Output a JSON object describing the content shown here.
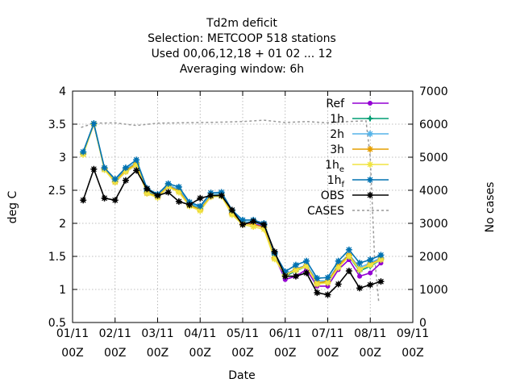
{
  "chart_data": {
    "type": "line",
    "title_lines": [
      "Td2m deficit",
      "Selection: METCOOP    518 stations",
      "Used  00,06,12,18 + 01 02 ... 12",
      "Averaging window:  6h"
    ],
    "xlabel": "Date",
    "ylabel": "deg C",
    "y2label": "No cases",
    "xlim": [
      0,
      8
    ],
    "ylim": [
      0.5,
      4
    ],
    "y2lim": [
      0,
      7000
    ],
    "grid": true,
    "legend_position": "top-right",
    "x_ticks": [
      {
        "x": 0,
        "line1": "01/11",
        "line2": "00Z"
      },
      {
        "x": 1,
        "line1": "02/11",
        "line2": "00Z"
      },
      {
        "x": 2,
        "line1": "03/11",
        "line2": "00Z"
      },
      {
        "x": 3,
        "line1": "04/11",
        "line2": "00Z"
      },
      {
        "x": 4,
        "line1": "05/11",
        "line2": "00Z"
      },
      {
        "x": 5,
        "line1": "06/11",
        "line2": "00Z"
      },
      {
        "x": 6,
        "line1": "07/11",
        "line2": "00Z"
      },
      {
        "x": 7,
        "line1": "08/11",
        "line2": "00Z"
      },
      {
        "x": 8,
        "line1": "09/11",
        "line2": "00Z"
      }
    ],
    "y_ticks": [
      {
        "v": 0.5,
        "label": "0.5"
      },
      {
        "v": 1,
        "label": "1"
      },
      {
        "v": 1.5,
        "label": "1.5"
      },
      {
        "v": 2,
        "label": "2"
      },
      {
        "v": 2.5,
        "label": "2.5"
      },
      {
        "v": 3,
        "label": "3"
      },
      {
        "v": 3.5,
        "label": "3.5"
      },
      {
        "v": 4,
        "label": "4"
      }
    ],
    "y2_ticks": [
      {
        "v": 0,
        "label": "0"
      },
      {
        "v": 1000,
        "label": "1000"
      },
      {
        "v": 2000,
        "label": "2000"
      },
      {
        "v": 3000,
        "label": "3000"
      },
      {
        "v": 4000,
        "label": "4000"
      },
      {
        "v": 5000,
        "label": "5000"
      },
      {
        "v": 6000,
        "label": "6000"
      },
      {
        "v": 7000,
        "label": "7000"
      }
    ],
    "x": [
      0.25,
      0.5,
      0.75,
      1.0,
      1.25,
      1.5,
      1.75,
      2.0,
      2.25,
      2.5,
      2.75,
      3.0,
      3.25,
      3.5,
      3.75,
      4.0,
      4.25,
      4.5,
      4.75,
      5.0,
      5.25,
      5.5,
      5.75,
      6.0,
      6.25,
      6.5,
      6.75,
      7.0,
      7.25
    ],
    "series": [
      {
        "name": "Ref",
        "label_main": "Ref",
        "label_sub": "",
        "color": "#9400d3",
        "marker": "filled-circle",
        "values": [
          3.05,
          3.5,
          2.82,
          2.62,
          2.78,
          2.88,
          2.45,
          2.4,
          2.55,
          2.48,
          2.28,
          2.2,
          2.4,
          2.42,
          2.15,
          2.0,
          2.0,
          1.95,
          1.5,
          1.15,
          1.2,
          1.3,
          1.05,
          1.05,
          1.3,
          1.45,
          1.2,
          1.25,
          1.4
        ]
      },
      {
        "name": "1h",
        "label_main": "1h",
        "label_sub": "",
        "color": "#009e73",
        "marker": "cross",
        "values": [
          3.07,
          3.5,
          2.82,
          2.64,
          2.8,
          2.9,
          2.47,
          2.42,
          2.57,
          2.5,
          2.3,
          2.22,
          2.42,
          2.44,
          2.17,
          2.02,
          2.02,
          1.97,
          1.52,
          1.2,
          1.28,
          1.35,
          1.1,
          1.1,
          1.35,
          1.5,
          1.28,
          1.35,
          1.45
        ]
      },
      {
        "name": "2h",
        "label_main": "2h",
        "label_sub": "",
        "color": "#56b4e9",
        "marker": "star",
        "values": [
          3.08,
          3.51,
          2.83,
          2.66,
          2.82,
          2.92,
          2.49,
          2.43,
          2.58,
          2.51,
          2.31,
          2.23,
          2.43,
          2.45,
          2.18,
          2.03,
          2.01,
          1.98,
          1.53,
          1.23,
          1.31,
          1.37,
          1.13,
          1.13,
          1.38,
          1.53,
          1.33,
          1.4,
          1.48
        ]
      },
      {
        "name": "3h",
        "label_main": "3h",
        "label_sub": "",
        "color": "#e69f00",
        "marker": "star",
        "values": [
          3.05,
          3.5,
          2.82,
          2.63,
          2.8,
          2.9,
          2.46,
          2.41,
          2.56,
          2.49,
          2.27,
          2.21,
          2.41,
          2.43,
          2.15,
          2.0,
          1.98,
          1.94,
          1.48,
          1.22,
          1.3,
          1.36,
          1.1,
          1.12,
          1.36,
          1.52,
          1.3,
          1.38,
          1.46
        ]
      },
      {
        "name": "1he",
        "label_main": "1h",
        "label_sub": "e",
        "color": "#f0e442",
        "marker": "star",
        "values": [
          3.04,
          3.5,
          2.81,
          2.62,
          2.78,
          2.88,
          2.45,
          2.39,
          2.55,
          2.47,
          2.26,
          2.19,
          2.4,
          2.41,
          2.13,
          1.98,
          1.95,
          1.91,
          1.46,
          1.22,
          1.29,
          1.35,
          1.08,
          1.1,
          1.33,
          1.5,
          1.3,
          1.37,
          1.45
        ]
      },
      {
        "name": "1hf",
        "label_main": "1h",
        "label_sub": "f",
        "color": "#0072b2",
        "marker": "star",
        "values": [
          3.08,
          3.51,
          2.84,
          2.67,
          2.84,
          2.96,
          2.53,
          2.44,
          2.6,
          2.55,
          2.32,
          2.26,
          2.46,
          2.47,
          2.2,
          2.05,
          2.05,
          2.0,
          1.55,
          1.27,
          1.37,
          1.43,
          1.17,
          1.18,
          1.43,
          1.6,
          1.4,
          1.45,
          1.52
        ]
      },
      {
        "name": "OBS",
        "label_main": "OBS",
        "label_sub": "",
        "color": "#000000",
        "marker": "star",
        "values": [
          2.35,
          2.82,
          2.38,
          2.35,
          2.65,
          2.8,
          2.52,
          2.42,
          2.47,
          2.33,
          2.28,
          2.38,
          2.42,
          2.42,
          2.2,
          1.98,
          2.03,
          1.98,
          1.57,
          1.2,
          1.2,
          1.25,
          0.95,
          0.92,
          1.08,
          1.28,
          1.02,
          1.07,
          1.12
        ]
      }
    ],
    "cases": {
      "name": "CASES",
      "label_main": "CASES",
      "label_sub": "",
      "color": "#999999",
      "axis": "y2",
      "x": [
        0.2,
        0.5,
        1.0,
        1.5,
        2.0,
        2.5,
        3.0,
        3.5,
        4.0,
        4.5,
        5.0,
        5.5,
        6.0,
        6.5,
        6.9,
        7.0,
        7.1,
        7.2
      ],
      "values": [
        5900,
        6030,
        6040,
        5960,
        6030,
        6040,
        6050,
        6060,
        6080,
        6120,
        6050,
        6080,
        6040,
        6080,
        6100,
        5000,
        2000,
        600
      ]
    }
  }
}
